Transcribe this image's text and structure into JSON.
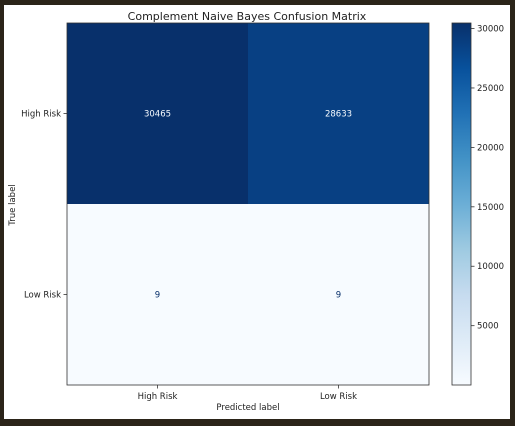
{
  "chart_data": {
    "type": "heatmap",
    "title": "Complement Naive Bayes Confusion Matrix",
    "xlabel": "Predicted label",
    "ylabel": "True label",
    "x_categories": [
      "High Risk",
      "Low Risk"
    ],
    "y_categories": [
      "High Risk",
      "Low Risk"
    ],
    "values": [
      [
        30465,
        28633
      ],
      [
        9,
        9
      ]
    ],
    "colorbar": {
      "min": 9,
      "max": 30465,
      "ticks": [
        5000,
        10000,
        15000,
        20000,
        25000,
        30000
      ],
      "colormap": "Blues"
    },
    "grid": false
  }
}
